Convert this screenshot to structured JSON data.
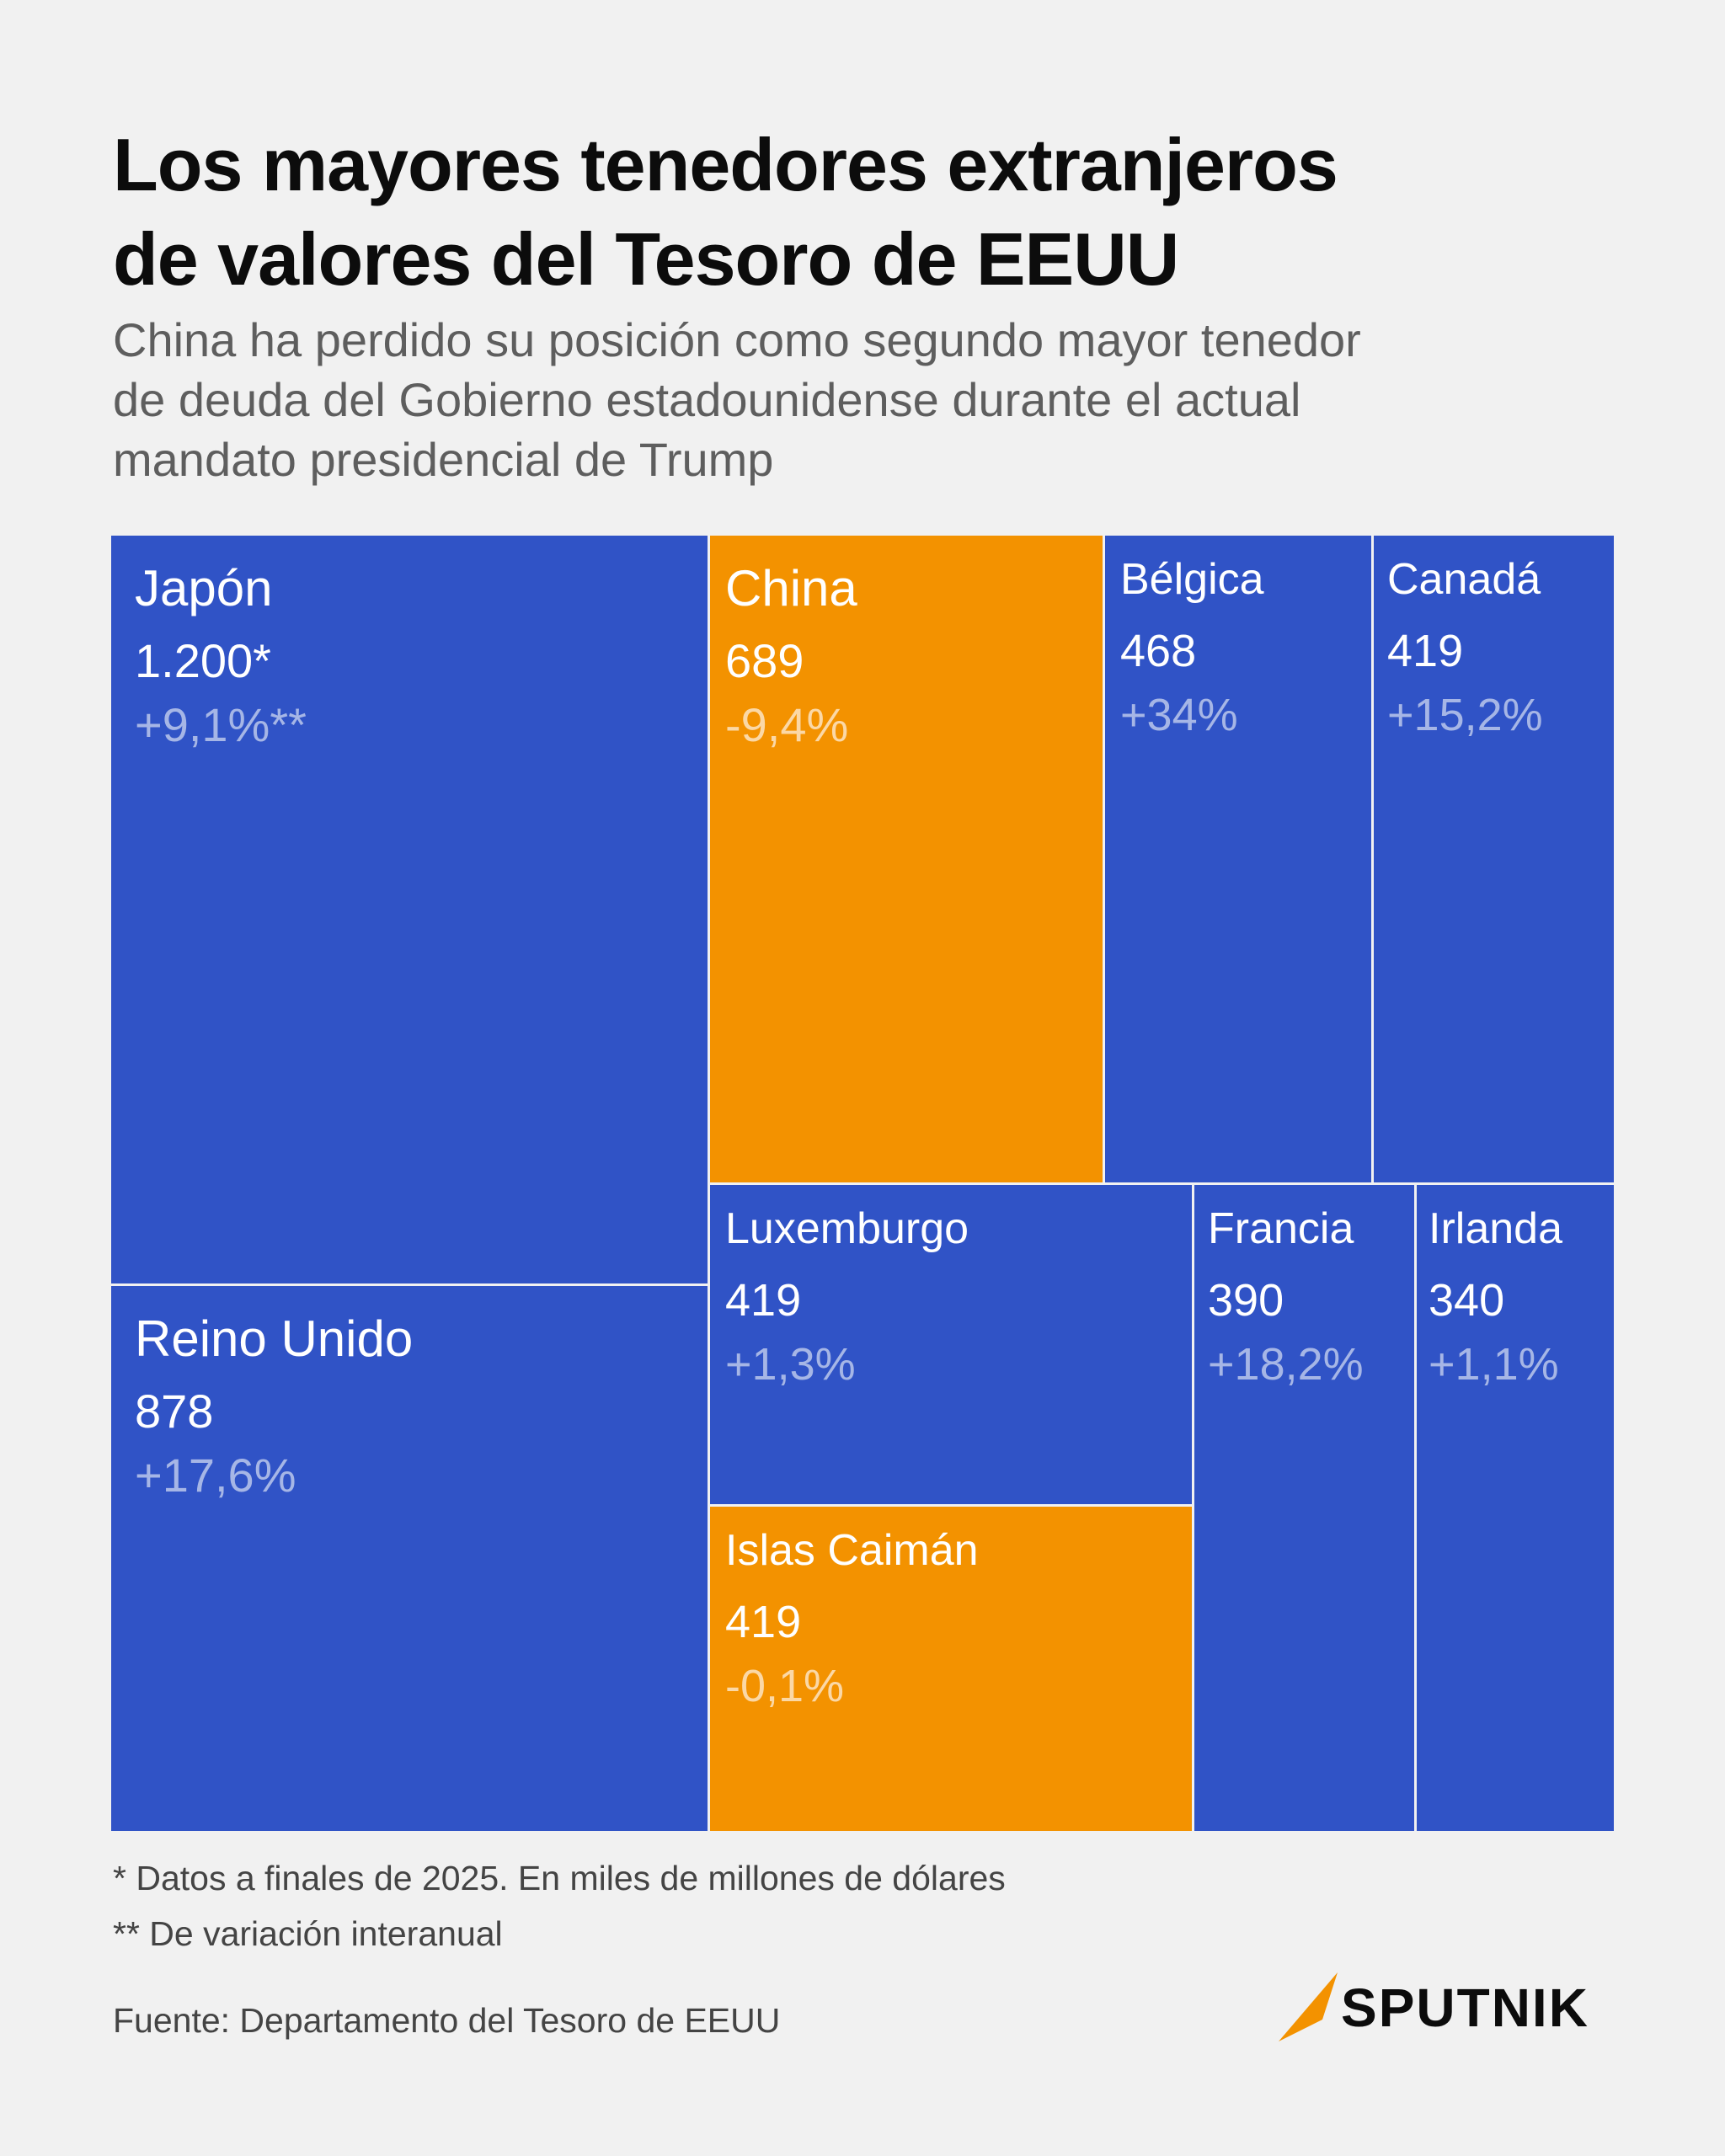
{
  "header": {
    "title_line1": "Los mayores tenedores extranjeros",
    "title_line2": "de valores del Tesoro de EEUU",
    "subtitle_line1": "China ha perdido su posición como segundo mayor tenedor",
    "subtitle_line2": "de deuda del Gobierno estadounidense durante el actual",
    "subtitle_line3": "mandato presidencial de Trump"
  },
  "colors": {
    "blue": "#3053c6",
    "orange": "#f39200",
    "background": "#f1f1f1"
  },
  "chart_data": {
    "type": "treemap",
    "title": "Los mayores tenedores extranjeros de valores del Tesoro de EEUU",
    "unit": "miles de millones de dólares",
    "items": [
      {
        "name": "Japón",
        "value": 1200,
        "value_label": "1.200*",
        "change_pct": 9.1,
        "change_label": "+9,1%**",
        "color": "blue"
      },
      {
        "name": "Reino Unido",
        "value": 878,
        "value_label": "878",
        "change_pct": 17.6,
        "change_label": "+17,6%",
        "color": "blue"
      },
      {
        "name": "China",
        "value": 689,
        "value_label": "689",
        "change_pct": -9.4,
        "change_label": "-9,4%",
        "color": "orange"
      },
      {
        "name": "Bélgica",
        "value": 468,
        "value_label": "468",
        "change_pct": 34,
        "change_label": "+34%",
        "color": "blue"
      },
      {
        "name": "Canadá",
        "value": 419,
        "value_label": "419",
        "change_pct": 15.2,
        "change_label": "+15,2%",
        "color": "blue"
      },
      {
        "name": "Luxemburgo",
        "value": 419,
        "value_label": "419",
        "change_pct": 1.3,
        "change_label": "+1,3%",
        "color": "blue"
      },
      {
        "name": "Islas Caimán",
        "value": 419,
        "value_label": "419",
        "change_pct": -0.1,
        "change_label": "-0,1%",
        "color": "orange"
      },
      {
        "name": "Francia",
        "value": 390,
        "value_label": "390",
        "change_pct": 18.2,
        "change_label": "+18,2%",
        "color": "blue"
      },
      {
        "name": "Irlanda",
        "value": 340,
        "value_label": "340",
        "change_pct": 1.1,
        "change_label": "+1,1%",
        "color": "blue"
      }
    ]
  },
  "footer": {
    "note1": "* Datos a finales de 2025. En miles de millones de dólares",
    "note2": "** De variación interanual",
    "source": "Fuente: Departamento del Tesoro de EEUU",
    "brand": "SPUTNIK"
  }
}
